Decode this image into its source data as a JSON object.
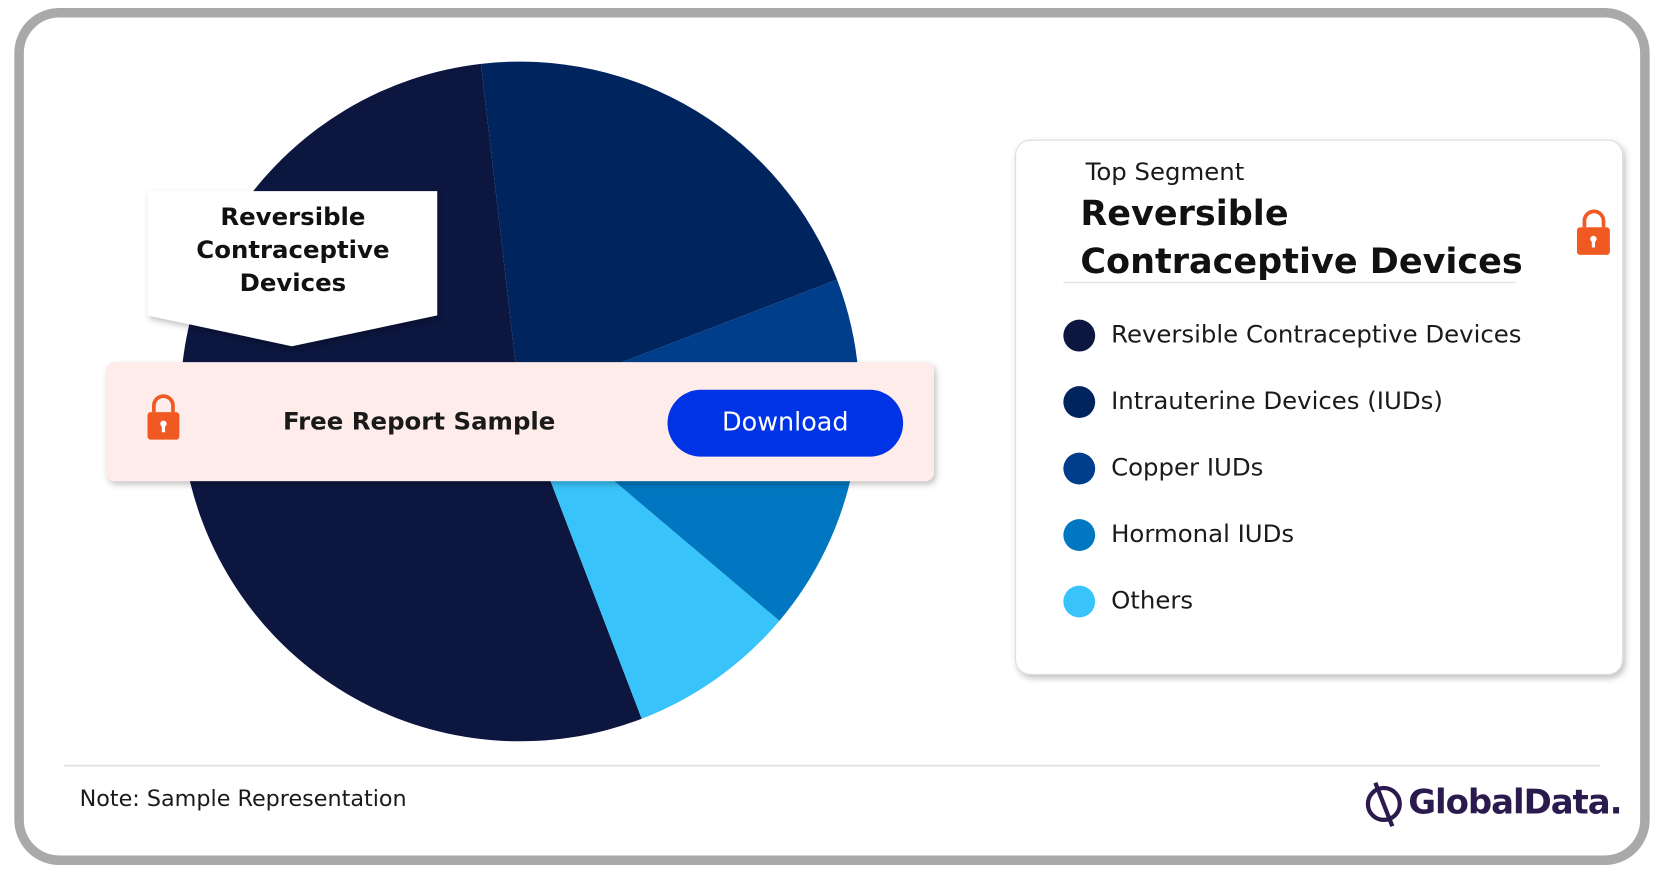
{
  "chart_data": {
    "type": "pie",
    "categories": [
      "Reversible Contraceptive Devices",
      "Intrauterine Devices (IUDs)",
      "Copper IUDs",
      "Hormonal IUDs",
      "Others"
    ],
    "values": [
      54,
      21,
      9,
      8,
      8
    ],
    "colors": [
      "#0c163f",
      "#00245e",
      "#003d8a",
      "#0077c0",
      "#38c4fa"
    ]
  },
  "banner": {
    "text": "Free Report Sample",
    "button": "Download"
  },
  "top_segment": {
    "heading": "Top Segment",
    "name": "Reversible Contraceptive Devices"
  },
  "note": "Note: Sample Representation",
  "brand": "GlobalData."
}
